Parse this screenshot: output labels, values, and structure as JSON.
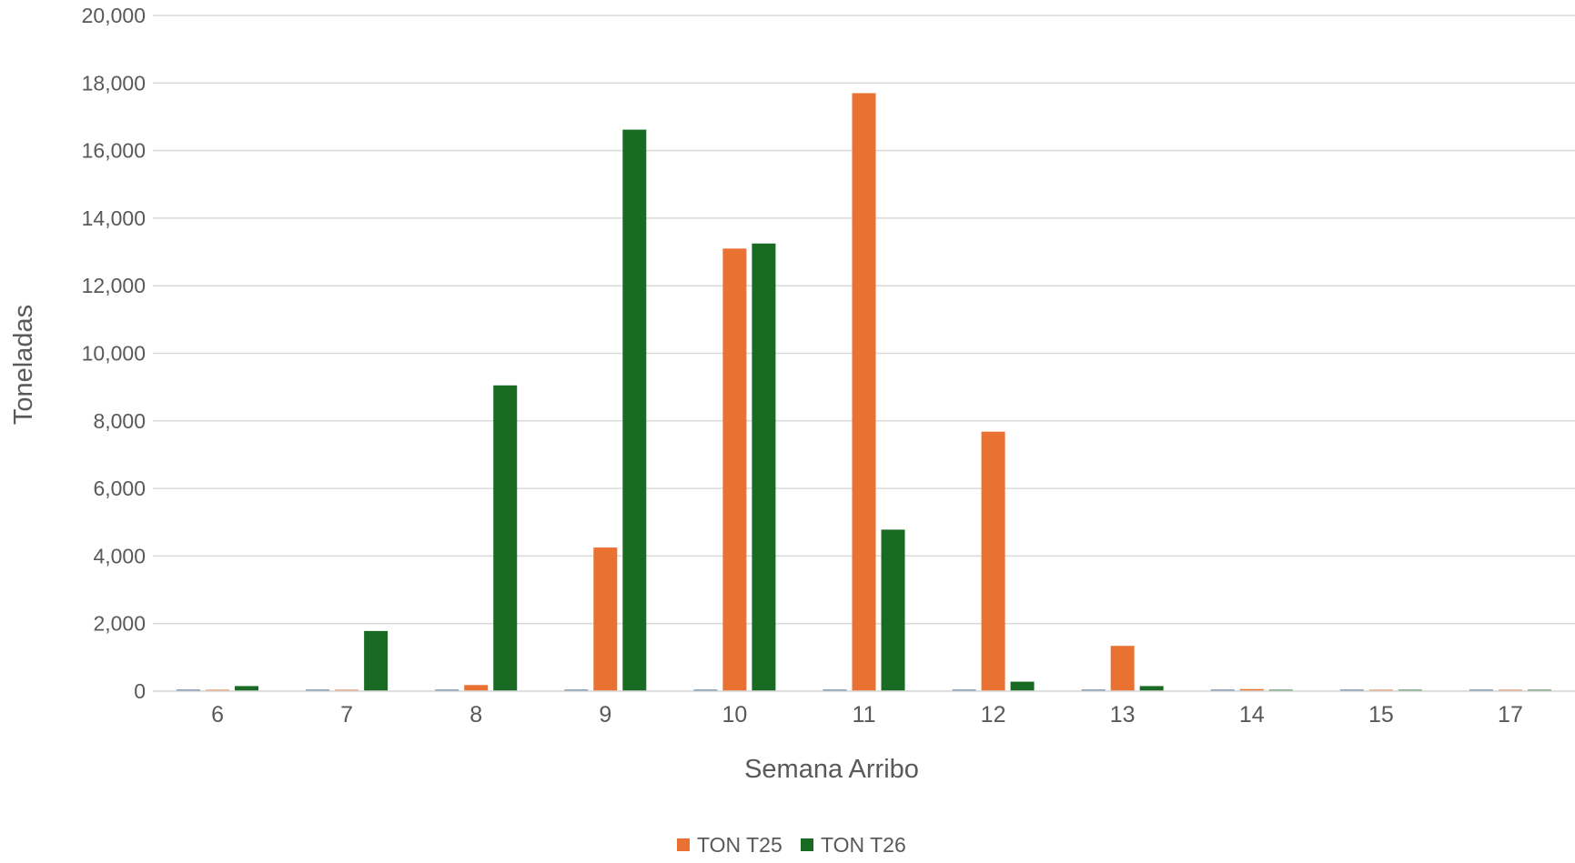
{
  "chart_data": {
    "type": "bar",
    "categories": [
      "6",
      "7",
      "8",
      "9",
      "10",
      "11",
      "12",
      "13",
      "14",
      "15",
      "17"
    ],
    "series": [
      {
        "name": "",
        "color": "#1f4e79",
        "values": [
          0,
          0,
          0,
          0,
          0,
          0,
          0,
          0,
          0,
          0,
          0
        ]
      },
      {
        "name": "TON T25",
        "color": "#e97132",
        "values": [
          0,
          0,
          180,
          4250,
          13100,
          17700,
          7680,
          1340,
          60,
          0,
          0
        ]
      },
      {
        "name": "TON T26",
        "color": "#196b24",
        "values": [
          150,
          1780,
          9050,
          16620,
          13250,
          4780,
          280,
          150,
          0,
          0,
          0
        ]
      }
    ],
    "title": "",
    "xlabel": "Semana Arribo",
    "ylabel": "Toneladas",
    "ylim": [
      0,
      20000
    ],
    "yticks": [
      "0",
      "2,000",
      "4,000",
      "6,000",
      "8,000",
      "10,000",
      "12,000",
      "14,000",
      "16,000",
      "18,000",
      "20,000"
    ],
    "grid": true,
    "legend_position": "bottom",
    "legend": [
      "TON T25",
      "TON T26"
    ]
  }
}
